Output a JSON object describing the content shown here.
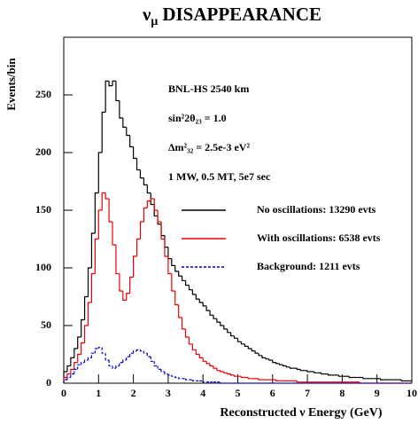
{
  "chart_data": {
    "type": "histogram",
    "title": "ν",
    "title_subscript": "μ",
    "title_rest": "DISAPPEARANCE",
    "x_label": "Reconstructed ν Energy (GeV)",
    "y_label": "Events/bin",
    "annotations": [
      "BNL-HS  2540 km",
      "sin²2θ₂₃ = 1.0",
      "Δm²₃₂ = 2.5e-3 eV²",
      "1 MW, 0.5 MT, 5e7 sec"
    ],
    "legend": "right",
    "xlim": [
      0,
      10
    ],
    "ylim": [
      0,
      300
    ],
    "xticks": [
      0,
      1,
      2,
      3,
      4,
      5,
      6,
      7,
      8,
      9,
      10
    ],
    "yticks": [
      0,
      50,
      100,
      150,
      200,
      250
    ],
    "bins": [
      0,
      0.1,
      0.2,
      0.3,
      0.4,
      0.5,
      0.6,
      0.7,
      0.8,
      0.9,
      1,
      1.1,
      1.2,
      1.3,
      1.4,
      1.5,
      1.6,
      1.7,
      1.8,
      1.9,
      2,
      2.1,
      2.2,
      2.3,
      2.4,
      2.5,
      2.6,
      2.7,
      2.8,
      2.9,
      3,
      3.1,
      3.2,
      3.3,
      3.4,
      3.5,
      3.6,
      3.7,
      3.8,
      3.9,
      4,
      4.1,
      4.2,
      4.3,
      4.4,
      4.5,
      4.6,
      4.7,
      4.8,
      4.9,
      5,
      5.1,
      5.2,
      5.3,
      5.4,
      5.5,
      5.6,
      5.7,
      5.8,
      5.9,
      6,
      6.1,
      6.2,
      6.3,
      6.4,
      6.5,
      6.6,
      6.7,
      6.8,
      6.9,
      7,
      7.1,
      7.2,
      7.3,
      7.4,
      7.5,
      7.6,
      7.7,
      7.8,
      7.9,
      8,
      8.1,
      8.2,
      8.3,
      8.4,
      8.5,
      8.6,
      8.7,
      8.8,
      8.9,
      9,
      9.1,
      9.2,
      9.3,
      9.4,
      9.5,
      9.6,
      9.7,
      9.8,
      9.9,
      10
    ],
    "series": [
      {
        "name": "No oscillations: 13290 evts",
        "color": "#000000",
        "dash": false,
        "values": [
          10,
          15,
          22,
          30,
          40,
          55,
          75,
          100,
          130,
          165,
          200,
          235,
          262,
          258,
          262,
          245,
          230,
          222,
          215,
          205,
          195,
          185,
          178,
          172,
          165,
          155,
          145,
          138,
          128,
          118,
          108,
          102,
          97,
          93,
          89,
          85,
          81,
          77,
          73,
          70,
          67,
          63,
          59,
          56,
          53,
          50,
          47,
          44,
          41,
          39,
          36,
          34,
          32,
          30,
          28,
          26,
          24,
          22,
          21,
          20,
          18,
          17,
          16,
          15,
          14,
          13,
          13,
          12,
          11,
          11,
          10,
          10,
          9,
          9,
          8,
          8,
          7,
          7,
          7,
          6,
          6,
          6,
          5,
          5,
          5,
          5,
          4,
          4,
          4,
          4,
          4,
          3,
          3,
          3,
          3,
          3,
          3,
          2,
          2,
          2
        ]
      },
      {
        "name": "With oscillations: 6538 evts",
        "color": "#ee0000",
        "dash": false,
        "values": [
          5,
          8,
          12,
          18,
          25,
          35,
          50,
          70,
          95,
          125,
          150,
          165,
          160,
          140,
          120,
          95,
          80,
          72,
          78,
          92,
          110,
          125,
          140,
          152,
          158,
          160,
          150,
          140,
          125,
          110,
          95,
          80,
          68,
          57,
          47,
          40,
          34,
          29,
          25,
          22,
          19,
          17,
          15,
          13,
          11,
          10,
          9,
          8,
          7,
          6,
          6,
          5,
          5,
          4,
          4,
          4,
          3,
          3,
          3,
          3,
          3,
          2,
          2,
          2,
          2,
          2,
          2,
          1,
          1,
          1,
          1,
          1,
          1,
          1,
          1,
          1,
          1,
          1,
          1,
          1,
          1,
          1,
          1,
          1,
          1,
          0,
          0,
          0,
          0,
          0,
          0,
          0,
          0,
          0,
          0,
          0,
          0,
          0,
          0,
          0
        ]
      },
      {
        "name": "Background: 1211 evts",
        "color": "#0000cc",
        "dash": true,
        "values": [
          3,
          5,
          8,
          12,
          16,
          18,
          20,
          22,
          26,
          30,
          31,
          26,
          20,
          15,
          13,
          15,
          18,
          20,
          23,
          26,
          28,
          29,
          28,
          26,
          23,
          19,
          15,
          12,
          10,
          8,
          7,
          6,
          5,
          4,
          4,
          3,
          3,
          2,
          2,
          2,
          1,
          1,
          1,
          1,
          1,
          0,
          0,
          0,
          0,
          0,
          0,
          0,
          0,
          0,
          0,
          0,
          0,
          0,
          0,
          0,
          0,
          0,
          0,
          0,
          0,
          0,
          0,
          0,
          0,
          0,
          0,
          0,
          0,
          0,
          0,
          0,
          0,
          0,
          0,
          0,
          0,
          0,
          0,
          0,
          0,
          0,
          0,
          0,
          0,
          0,
          0,
          0,
          0,
          0,
          0,
          0,
          0,
          0,
          0,
          0
        ]
      }
    ]
  }
}
